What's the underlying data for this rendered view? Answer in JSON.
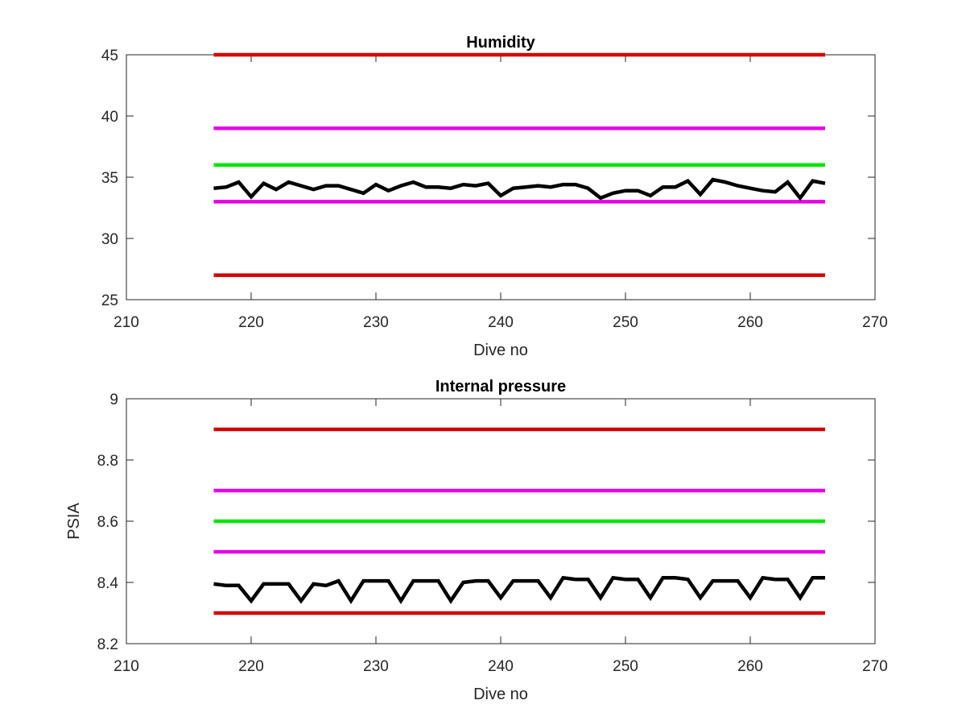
{
  "chart_data": [
    {
      "type": "line",
      "title": "Humidity",
      "xlabel": "Dive no",
      "ylabel": "",
      "xlim": [
        210,
        270
      ],
      "ylim": [
        25,
        45
      ],
      "xticks": [
        "210",
        "220",
        "230",
        "240",
        "250",
        "260",
        "270"
      ],
      "yticks": [
        "25",
        "30",
        "35",
        "40",
        "45"
      ],
      "grid": false,
      "limit_lines": [
        {
          "color": "#d40000",
          "y": 45,
          "x": [
            217,
            266
          ]
        },
        {
          "color": "#e600e6",
          "y": 39,
          "x": [
            217,
            266
          ]
        },
        {
          "color": "#00e600",
          "y": 36,
          "x": [
            217,
            266
          ]
        },
        {
          "color": "#e600e6",
          "y": 33,
          "x": [
            217,
            266
          ]
        },
        {
          "color": "#d40000",
          "y": 27,
          "x": [
            217,
            266
          ]
        }
      ],
      "series": [
        {
          "color": "#000000",
          "x": [
            217,
            218,
            219,
            220,
            221,
            222,
            223,
            224,
            225,
            226,
            227,
            228,
            229,
            230,
            231,
            232,
            233,
            234,
            235,
            236,
            237,
            238,
            239,
            240,
            241,
            242,
            243,
            244,
            245,
            246,
            247,
            248,
            249,
            250,
            251,
            252,
            253,
            254,
            255,
            256,
            257,
            258,
            259,
            260,
            261,
            262,
            263,
            264,
            265,
            266
          ],
          "y": [
            34.1,
            34.2,
            34.6,
            33.4,
            34.5,
            34.0,
            34.6,
            34.3,
            34.0,
            34.3,
            34.3,
            34.0,
            33.7,
            34.4,
            33.9,
            34.3,
            34.6,
            34.2,
            34.2,
            34.1,
            34.4,
            34.3,
            34.5,
            33.5,
            34.1,
            34.2,
            34.3,
            34.2,
            34.4,
            34.4,
            34.1,
            33.3,
            33.7,
            33.9,
            33.9,
            33.5,
            34.2,
            34.2,
            34.7,
            33.6,
            34.8,
            34.6,
            34.3,
            34.1,
            33.9,
            33.8,
            34.6,
            33.3,
            34.7,
            34.5
          ]
        }
      ]
    },
    {
      "type": "line",
      "title": "Internal pressure",
      "xlabel": "Dive no",
      "ylabel": "PSIA",
      "xlim": [
        210,
        270
      ],
      "ylim": [
        8.2,
        9.0
      ],
      "xticks": [
        "210",
        "220",
        "230",
        "240",
        "250",
        "260",
        "270"
      ],
      "yticks": [
        "8.2",
        "8.4",
        "8.6",
        "8.8",
        "9"
      ],
      "grid": false,
      "limit_lines": [
        {
          "color": "#d40000",
          "y": 8.9,
          "x": [
            217,
            266
          ]
        },
        {
          "color": "#e600e6",
          "y": 8.7,
          "x": [
            217,
            266
          ]
        },
        {
          "color": "#00e600",
          "y": 8.6,
          "x": [
            217,
            266
          ]
        },
        {
          "color": "#e600e6",
          "y": 8.5,
          "x": [
            217,
            266
          ]
        },
        {
          "color": "#d40000",
          "y": 8.3,
          "x": [
            217,
            266
          ]
        }
      ],
      "series": [
        {
          "color": "#000000",
          "x": [
            217,
            218,
            219,
            220,
            221,
            222,
            223,
            224,
            225,
            226,
            227,
            228,
            229,
            230,
            231,
            232,
            233,
            234,
            235,
            236,
            237,
            238,
            239,
            240,
            241,
            242,
            243,
            244,
            245,
            246,
            247,
            248,
            249,
            250,
            251,
            252,
            253,
            254,
            255,
            256,
            257,
            258,
            259,
            260,
            261,
            262,
            263,
            264,
            265,
            266
          ],
          "y": [
            8.395,
            8.39,
            8.39,
            8.34,
            8.395,
            8.395,
            8.395,
            8.34,
            8.395,
            8.39,
            8.405,
            8.34,
            8.405,
            8.405,
            8.405,
            8.34,
            8.405,
            8.405,
            8.405,
            8.34,
            8.4,
            8.405,
            8.405,
            8.35,
            8.405,
            8.405,
            8.405,
            8.35,
            8.415,
            8.41,
            8.41,
            8.35,
            8.415,
            8.41,
            8.41,
            8.35,
            8.415,
            8.415,
            8.41,
            8.35,
            8.405,
            8.405,
            8.405,
            8.35,
            8.415,
            8.41,
            8.41,
            8.35,
            8.415,
            8.415
          ]
        }
      ]
    }
  ]
}
